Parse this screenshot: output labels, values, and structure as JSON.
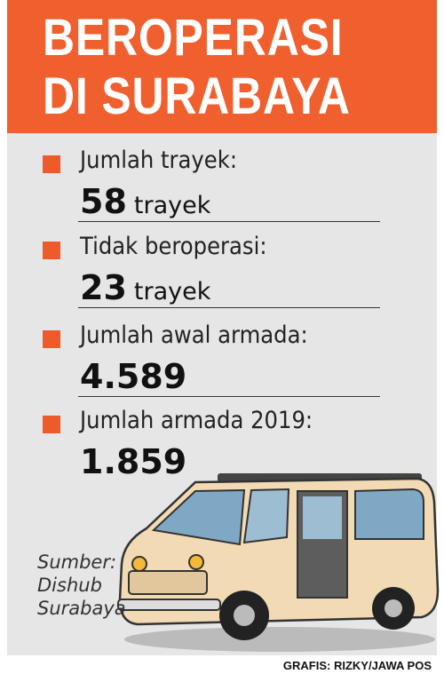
{
  "header": {
    "title": [
      "BEROPERASI",
      "DI SURABAYA"
    ]
  },
  "items": [
    {
      "label": "Jumlah trayek:",
      "value": "58",
      "unit": "trayek"
    },
    {
      "label": "Tidak beroperasi:",
      "value": "23",
      "unit": "trayek"
    },
    {
      "label": "Jumlah awal armada:",
      "value": "4.589"
    },
    {
      "label": "Jumlah armada 2019:",
      "value": "1.859"
    }
  ],
  "source": [
    "Sumber:",
    "Dishub",
    "Surabaya"
  ],
  "credit": "GRAFIS: RIZKY/JAWA POS"
}
